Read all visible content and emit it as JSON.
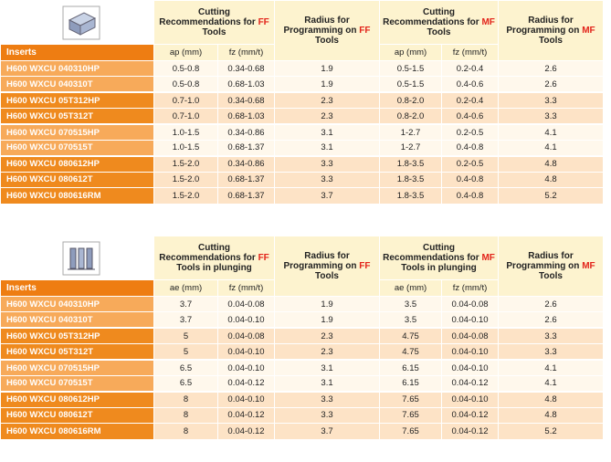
{
  "table1": {
    "inserts": "Inserts",
    "ff": {
      "before": "Cutting Recommendations for ",
      "tool": "FF",
      "after": " Tools"
    },
    "ff_radius": {
      "before": "Radius for Programming on ",
      "tool": "FF",
      "after": " Tools"
    },
    "mf": {
      "before": "Cutting Recommendations for ",
      "tool": "MF",
      "after": " Tools"
    },
    "mf_radius": {
      "before": "Radius for Programming on ",
      "tool": "MF",
      "after": " Tools"
    },
    "subheaders": [
      "ap (mm)",
      "fz (mm/t)",
      "ap (mm)",
      "fz (mm/t)"
    ],
    "groups": [
      [
        [
          "H600 WXCU 040310HP",
          "0.5-0.8",
          "0.34-0.68",
          "1.9",
          "0.5-1.5",
          "0.2-0.4",
          "2.6"
        ],
        [
          "H600 WXCU 040310T",
          "0.5-0.8",
          "0.68-1.03",
          "1.9",
          "0.5-1.5",
          "0.4-0.6",
          "2.6"
        ]
      ],
      [
        [
          "H600 WXCU 05T312HP",
          "0.7-1.0",
          "0.34-0.68",
          "2.3",
          "0.8-2.0",
          "0.2-0.4",
          "3.3"
        ],
        [
          "H600 WXCU 05T312T",
          "0.7-1.0",
          "0.68-1.03",
          "2.3",
          "0.8-2.0",
          "0.4-0.6",
          "3.3"
        ]
      ],
      [
        [
          "H600 WXCU 070515HP",
          "1.0-1.5",
          "0.34-0.86",
          "3.1",
          "1-2.7",
          "0.2-0.5",
          "4.1"
        ],
        [
          "H600 WXCU 070515T",
          "1.0-1.5",
          "0.68-1.37",
          "3.1",
          "1-2.7",
          "0.4-0.8",
          "4.1"
        ]
      ],
      [
        [
          "H600 WXCU 080612HP",
          "1.5-2.0",
          "0.34-0.86",
          "3.3",
          "1.8-3.5",
          "0.2-0.5",
          "4.8"
        ],
        [
          "H600 WXCU 080612T",
          "1.5-2.0",
          "0.68-1.37",
          "3.3",
          "1.8-3.5",
          "0.4-0.8",
          "4.8"
        ],
        [
          "H600 WXCU 080616RM",
          "1.5-2.0",
          "0.68-1.37",
          "3.7",
          "1.8-3.5",
          "0.4-0.8",
          "5.2"
        ]
      ]
    ]
  },
  "table2": {
    "inserts": "Inserts",
    "ff": {
      "before": "Cutting Recommendations for ",
      "tool": "FF",
      "after": " Tools in plunging"
    },
    "ff_radius": {
      "before": "Radius for Programming on ",
      "tool": "FF",
      "after": " Tools"
    },
    "mf": {
      "before": "Cutting Recommendations for ",
      "tool": "MF",
      "after": " Tools in plunging"
    },
    "mf_radius": {
      "before": "Radius for Programming on ",
      "tool": "MF",
      "after": " Tools"
    },
    "subheaders": [
      "ae (mm)",
      "fz (mm/t)",
      "ae (mm)",
      "fz (mm/t)"
    ],
    "groups": [
      [
        [
          "H600 WXCU 040310HP",
          "3.7",
          "0.04-0.08",
          "1.9",
          "3.5",
          "0.04-0.08",
          "2.6"
        ],
        [
          "H600 WXCU 040310T",
          "3.7",
          "0.04-0.10",
          "1.9",
          "3.5",
          "0.04-0.10",
          "2.6"
        ]
      ],
      [
        [
          "H600 WXCU 05T312HP",
          "5",
          "0.04-0.08",
          "2.3",
          "4.75",
          "0.04-0.08",
          "3.3"
        ],
        [
          "H600 WXCU 05T312T",
          "5",
          "0.04-0.10",
          "2.3",
          "4.75",
          "0.04-0.10",
          "3.3"
        ]
      ],
      [
        [
          "H600 WXCU 070515HP",
          "6.5",
          "0.04-0.10",
          "3.1",
          "6.15",
          "0.04-0.10",
          "4.1"
        ],
        [
          "H600 WXCU 070515T",
          "6.5",
          "0.04-0.12",
          "3.1",
          "6.15",
          "0.04-0.12",
          "4.1"
        ]
      ],
      [
        [
          "H600 WXCU 080612HP",
          "8",
          "0.04-0.10",
          "3.3",
          "7.65",
          "0.04-0.10",
          "4.8"
        ],
        [
          "H600 WXCU 080612T",
          "8",
          "0.04-0.12",
          "3.3",
          "7.65",
          "0.04-0.12",
          "4.8"
        ],
        [
          "H600 WXCU 080616RM",
          "8",
          "0.04-0.12",
          "3.7",
          "7.65",
          "0.04-0.12",
          "5.2"
        ]
      ]
    ]
  }
}
